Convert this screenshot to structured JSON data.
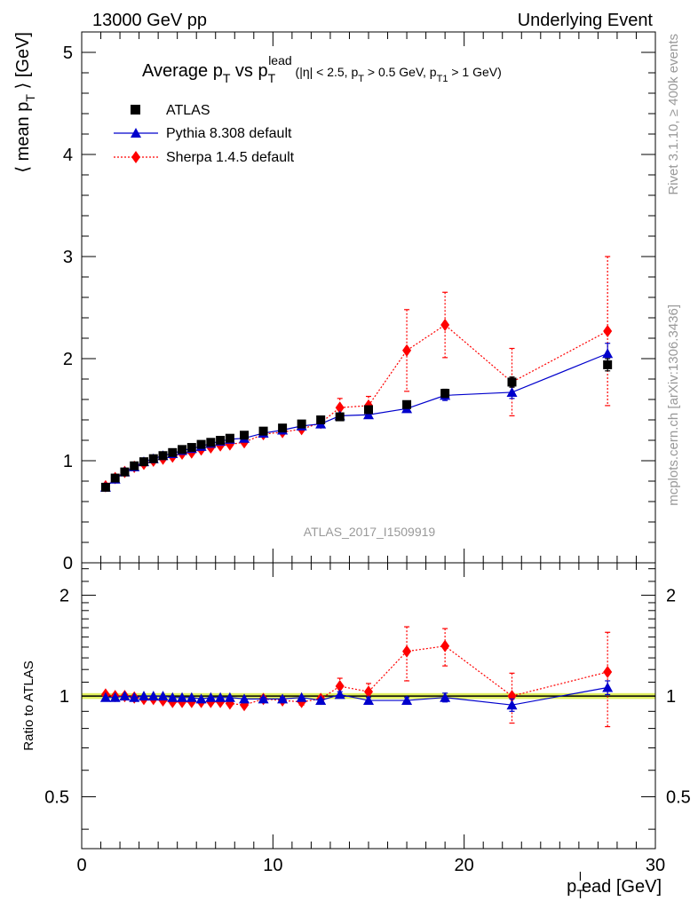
{
  "header": {
    "top_left": "13000 GeV pp",
    "top_right": "Underlying Event"
  },
  "side_labels": {
    "rivet": "Rivet 3.1.10, ≥ 400k events",
    "mcplots": "mcplots.cern.ch [arXiv:1306.3436]"
  },
  "watermark": "ATLAS_2017_I1509919",
  "chart_data": [
    {
      "type": "scatter",
      "panel": "main",
      "title": {
        "main": "Average p",
        "main_sub": "T",
        "vs": " vs p",
        "vs_sub": "T",
        "vs_sup": "lead",
        "cuts_prefix": " (|η| < 2.5, p",
        "cuts_sub1": "T",
        "cuts_mid": " > 0.5 GeV, p",
        "cuts_sub2": "T1",
        "cuts_suffix": " > 1 GeV)"
      },
      "ylabel": {
        "prefix": "⟨ mean p",
        "sub": "T",
        "suffix": " ⟩ [GeV]"
      },
      "xlim": [
        0,
        30
      ],
      "ylim": [
        0,
        5.2
      ],
      "yticks": [
        0,
        1,
        2,
        3,
        4,
        5
      ],
      "legend_position": "top-left",
      "series": [
        {
          "name": "ATLAS",
          "marker": "square",
          "color": "#000000",
          "x": [
            1.25,
            1.75,
            2.25,
            2.75,
            3.25,
            3.75,
            4.25,
            4.75,
            5.25,
            5.75,
            6.25,
            6.75,
            7.25,
            7.75,
            8.5,
            9.5,
            10.5,
            11.5,
            12.5,
            13.5,
            15.0,
            17.0,
            19.0,
            22.5,
            27.5
          ],
          "y": [
            0.74,
            0.83,
            0.89,
            0.95,
            0.99,
            1.02,
            1.05,
            1.08,
            1.11,
            1.13,
            1.16,
            1.18,
            1.2,
            1.22,
            1.25,
            1.29,
            1.32,
            1.36,
            1.4,
            1.43,
            1.5,
            1.55,
            1.66,
            1.77,
            1.94
          ],
          "yerr": [
            0,
            0,
            0,
            0,
            0,
            0,
            0,
            0,
            0,
            0,
            0,
            0,
            0,
            0,
            0,
            0,
            0,
            0,
            0,
            0,
            0,
            0.03,
            0.04,
            0.05,
            0.06
          ]
        },
        {
          "name": "Pythia 8.308 default",
          "marker": "triangle",
          "line": "solid",
          "color": "#0000cc",
          "x": [
            1.25,
            1.75,
            2.25,
            2.75,
            3.25,
            3.75,
            4.25,
            4.75,
            5.25,
            5.75,
            6.25,
            6.75,
            7.25,
            7.75,
            8.5,
            9.5,
            10.5,
            11.5,
            12.5,
            13.5,
            15.0,
            17.0,
            19.0,
            22.5,
            27.5
          ],
          "y": [
            0.74,
            0.82,
            0.89,
            0.94,
            0.99,
            1.02,
            1.05,
            1.07,
            1.1,
            1.12,
            1.14,
            1.17,
            1.19,
            1.21,
            1.22,
            1.27,
            1.3,
            1.34,
            1.36,
            1.44,
            1.45,
            1.51,
            1.64,
            1.67,
            2.05
          ],
          "yerr": [
            0,
            0,
            0,
            0,
            0,
            0,
            0,
            0,
            0,
            0,
            0,
            0,
            0,
            0,
            0,
            0,
            0,
            0,
            0,
            0.02,
            0.02,
            0.03,
            0.05,
            0.06,
            0.1
          ]
        },
        {
          "name": "Sherpa 1.4.5 default",
          "marker": "diamond",
          "line": "dotted",
          "color": "#ff0000",
          "x": [
            1.25,
            1.75,
            2.25,
            2.75,
            3.25,
            3.75,
            4.25,
            4.75,
            5.25,
            5.75,
            6.25,
            6.75,
            7.25,
            7.75,
            8.5,
            9.5,
            10.5,
            11.5,
            12.5,
            13.5,
            15.0,
            17.0,
            19.0,
            22.5,
            27.5
          ],
          "y": [
            0.75,
            0.83,
            0.89,
            0.94,
            0.97,
            1.0,
            1.02,
            1.04,
            1.07,
            1.08,
            1.11,
            1.13,
            1.15,
            1.16,
            1.18,
            1.26,
            1.28,
            1.31,
            1.37,
            1.52,
            1.54,
            2.08,
            2.33,
            1.77,
            2.27
          ],
          "yerr": [
            0,
            0,
            0,
            0,
            0,
            0,
            0,
            0,
            0,
            0,
            0,
            0,
            0,
            0,
            0,
            0,
            0,
            0,
            0,
            0.09,
            0.09,
            0.4,
            0.32,
            0.33,
            0.73
          ]
        }
      ]
    },
    {
      "type": "scatter",
      "panel": "ratio",
      "ylabel": "Ratio to ATLAS",
      "xlabel": {
        "prefix": "p",
        "sub": "T",
        "sup": "l",
        "suffix": "ead [GeV]"
      },
      "xlim": [
        0,
        30
      ],
      "ylim": [
        0.35,
        2.5
      ],
      "log_y": true,
      "yticks": [
        0.5,
        1,
        2
      ],
      "ytick_labels": [
        "0.5",
        "1",
        "2"
      ],
      "xticks": [
        0,
        10,
        20,
        30
      ],
      "xtick_labels": [
        "0",
        "10",
        "20",
        "30"
      ],
      "band_color": "#e0f060",
      "series": [
        {
          "name": "Pythia 8.308 default",
          "marker": "triangle",
          "line": "solid",
          "color": "#0000cc",
          "x": [
            1.25,
            1.75,
            2.25,
            2.75,
            3.25,
            3.75,
            4.25,
            4.75,
            5.25,
            5.75,
            6.25,
            6.75,
            7.25,
            7.75,
            8.5,
            9.5,
            10.5,
            11.5,
            12.5,
            13.5,
            15.0,
            17.0,
            19.0,
            22.5,
            27.5
          ],
          "y": [
            0.99,
            0.99,
            1.0,
            0.99,
            1.0,
            1.0,
            1.0,
            0.99,
            0.99,
            0.99,
            0.98,
            0.99,
            0.99,
            0.99,
            0.98,
            0.98,
            0.98,
            0.99,
            0.97,
            1.01,
            0.97,
            0.97,
            0.99,
            0.94,
            1.06
          ],
          "yerr": [
            0,
            0,
            0,
            0,
            0,
            0,
            0,
            0,
            0,
            0,
            0,
            0,
            0,
            0,
            0,
            0.01,
            0.01,
            0.01,
            0.01,
            0.02,
            0.02,
            0.02,
            0.03,
            0.04,
            0.05
          ]
        },
        {
          "name": "Sherpa 1.4.5 default",
          "marker": "diamond",
          "line": "dotted",
          "color": "#ff0000",
          "x": [
            1.25,
            1.75,
            2.25,
            2.75,
            3.25,
            3.75,
            4.25,
            4.75,
            5.25,
            5.75,
            6.25,
            6.75,
            7.25,
            7.75,
            8.5,
            9.5,
            10.5,
            11.5,
            12.5,
            13.5,
            15.0,
            17.0,
            19.0,
            22.5,
            27.5
          ],
          "y": [
            1.01,
            1.0,
            1.0,
            0.99,
            0.98,
            0.98,
            0.97,
            0.96,
            0.96,
            0.96,
            0.96,
            0.96,
            0.96,
            0.95,
            0.94,
            0.98,
            0.97,
            0.96,
            0.98,
            1.07,
            1.03,
            1.36,
            1.41,
            1.0,
            1.18
          ],
          "yerr": [
            0,
            0,
            0,
            0,
            0,
            0,
            0,
            0,
            0,
            0,
            0,
            0,
            0,
            0,
            0,
            0.01,
            0.01,
            0.02,
            0.02,
            0.06,
            0.06,
            0.25,
            0.18,
            0.17,
            0.37
          ]
        }
      ]
    }
  ]
}
